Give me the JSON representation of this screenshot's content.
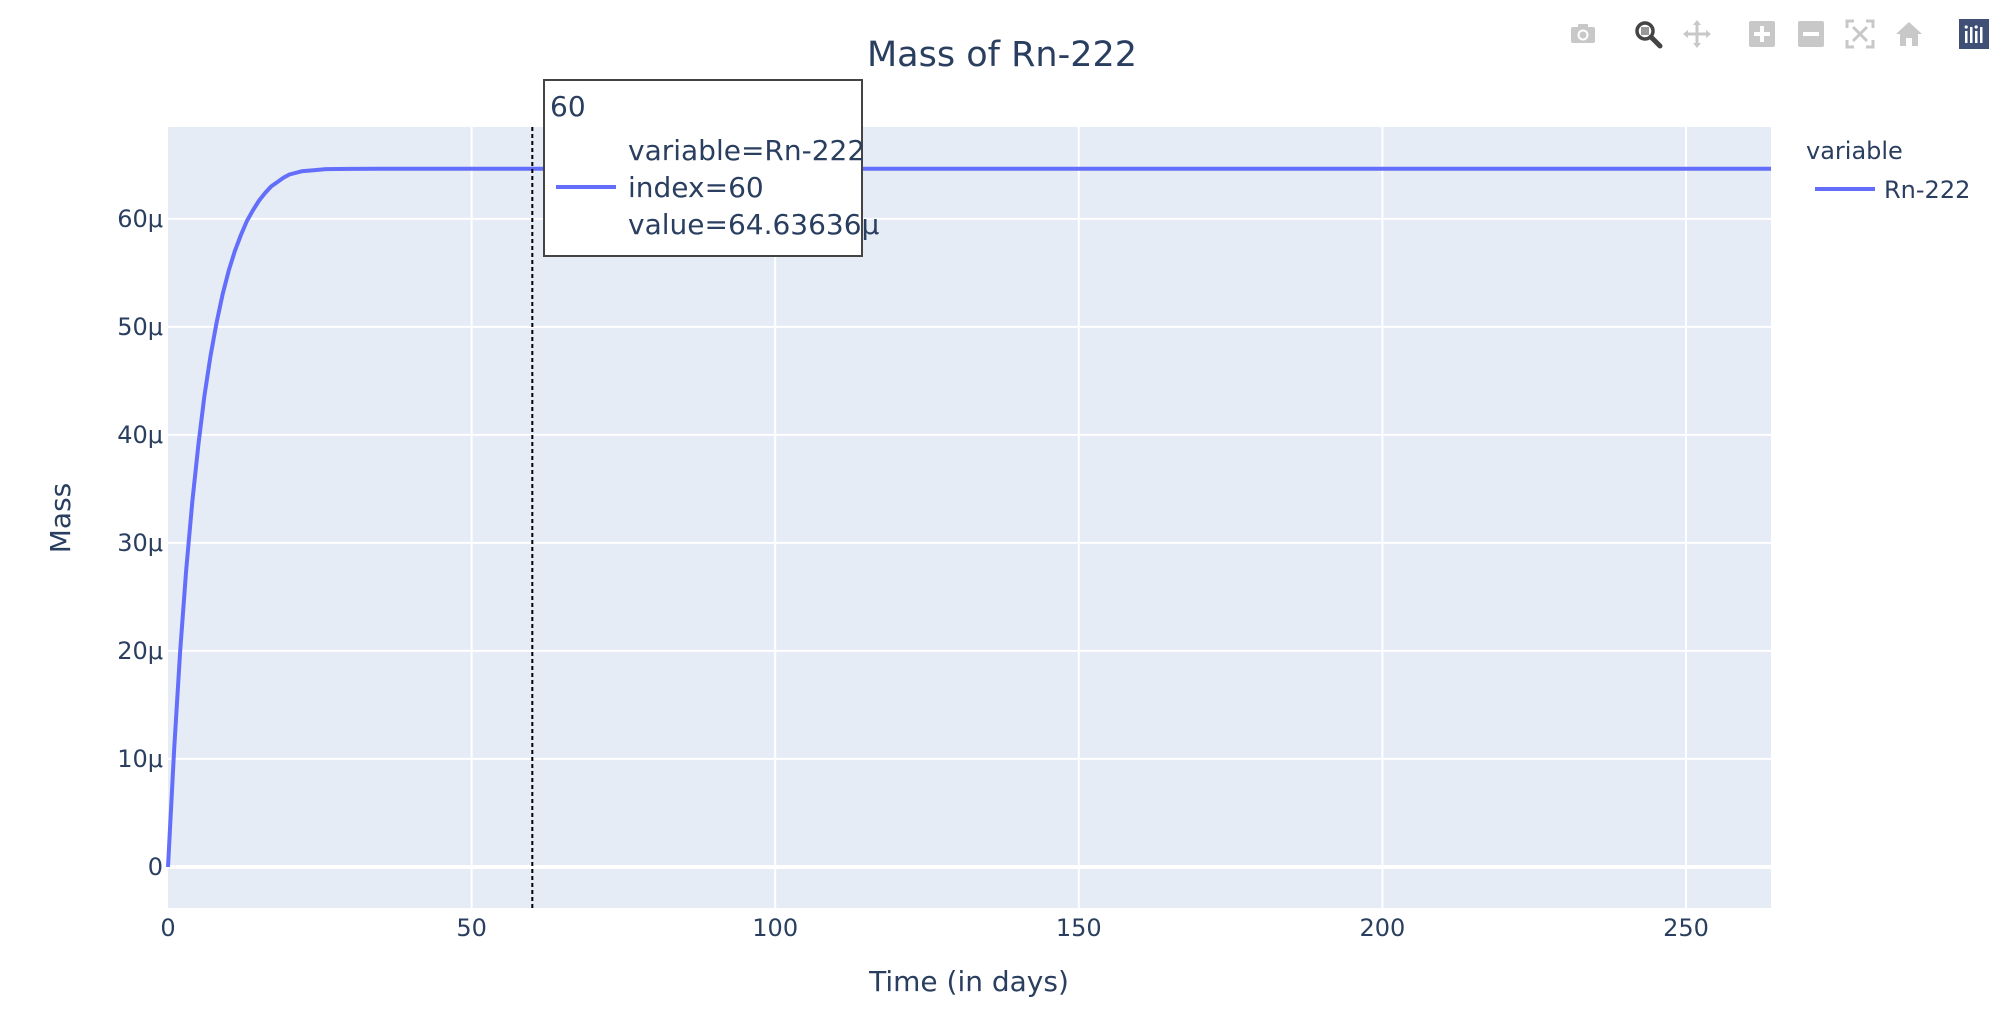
{
  "chart_data": {
    "type": "line",
    "title": "Mass of Rn-222",
    "xlabel": "Time (in days)",
    "ylabel": "Mass",
    "xlim": [
      0,
      264
    ],
    "ylim": [
      -3.8,
      68.5
    ],
    "x_ticks": [
      0,
      50,
      100,
      150,
      200,
      250
    ],
    "x_tick_labels": [
      "0",
      "50",
      "100",
      "150",
      "200",
      "250"
    ],
    "y_ticks": [
      0,
      10,
      20,
      30,
      40,
      50,
      60
    ],
    "y_tick_labels": [
      "0",
      "10μ",
      "20μ",
      "30μ",
      "40μ",
      "50μ",
      "60μ"
    ],
    "grid": true,
    "legend_title": "variable",
    "legend_position": "right",
    "series": [
      {
        "name": "Rn-222",
        "color": "#636efa",
        "x": [
          0,
          1,
          2,
          3,
          4,
          5,
          6,
          7,
          8,
          9,
          10,
          11,
          12,
          13,
          14,
          15,
          16,
          17,
          18,
          19,
          20,
          22,
          24,
          26,
          28,
          30,
          35,
          40,
          45,
          50,
          60,
          70,
          80,
          100,
          120,
          150,
          200,
          250,
          264
        ],
        "y": [
          0,
          10.8,
          19.9,
          27.5,
          33.8,
          39.1,
          43.6,
          47.3,
          50.4,
          53.0,
          55.2,
          57.0,
          58.5,
          59.8,
          60.8,
          61.7,
          62.4,
          63.0,
          63.4,
          63.8,
          64.1,
          64.4,
          64.5,
          64.6,
          64.61,
          64.62,
          64.63,
          64.635,
          64.636,
          64.636,
          64.63636,
          64.636,
          64.636,
          64.636,
          64.636,
          64.636,
          64.636,
          64.636,
          64.636
        ]
      }
    ],
    "hover": {
      "x": 60,
      "header": "60",
      "lines": [
        "variable=Rn-222",
        "index=60",
        "value=64.63636μ"
      ]
    }
  },
  "modebar": {
    "buttons": [
      {
        "name": "camera-icon",
        "title": "Download plot as a png"
      },
      {
        "name": "zoom-icon",
        "title": "Zoom"
      },
      {
        "name": "pan-icon",
        "title": "Pan"
      },
      {
        "name": "zoom-in-icon",
        "title": "Zoom in"
      },
      {
        "name": "zoom-out-icon",
        "title": "Zoom out"
      },
      {
        "name": "autoscale-icon",
        "title": "Autoscale"
      },
      {
        "name": "home-icon",
        "title": "Reset axes"
      },
      {
        "name": "plotly-logo-icon",
        "title": "Produced with Plotly"
      }
    ]
  }
}
